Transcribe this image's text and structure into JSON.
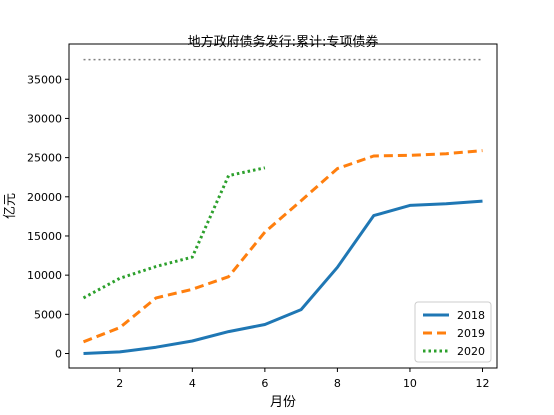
{
  "chart_data": {
    "type": "line",
    "title": "地方政府债务发行:累计:专项债券",
    "xlabel": "月份",
    "ylabel": "亿元",
    "xlim": [
      0.6,
      12.4
    ],
    "ylim": [
      -1850,
      39500
    ],
    "xticks": [
      2,
      4,
      6,
      8,
      10,
      12
    ],
    "yticks": [
      0,
      5000,
      10000,
      15000,
      20000,
      25000,
      30000,
      35000
    ],
    "grid": false,
    "legend_position": "lower-right",
    "reference_line": {
      "y": 37500,
      "style": "dotted",
      "color": "#808080",
      "x_range": [
        1,
        12
      ]
    },
    "series": [
      {
        "name": "2018",
        "color": "#1f77b4",
        "style": "solid",
        "x": [
          1,
          2,
          3,
          4,
          5,
          6,
          7,
          8,
          9,
          10,
          11,
          12
        ],
        "values": [
          0,
          200,
          800,
          1600,
          2800,
          3700,
          5600,
          11000,
          17600,
          18900,
          19100,
          19450
        ]
      },
      {
        "name": "2019",
        "color": "#ff7f0e",
        "style": "dashed",
        "x": [
          1,
          2,
          3,
          4,
          5,
          6,
          7,
          8,
          9,
          10,
          11,
          12
        ],
        "values": [
          1500,
          3300,
          7100,
          8200,
          9800,
          15500,
          19500,
          23600,
          25200,
          25300,
          25500,
          25900
        ]
      },
      {
        "name": "2020",
        "color": "#2ca02c",
        "style": "dotted",
        "x": [
          1,
          2,
          3,
          4,
          5,
          6
        ],
        "values": [
          7100,
          9600,
          11100,
          12300,
          22700,
          23700
        ]
      }
    ]
  }
}
